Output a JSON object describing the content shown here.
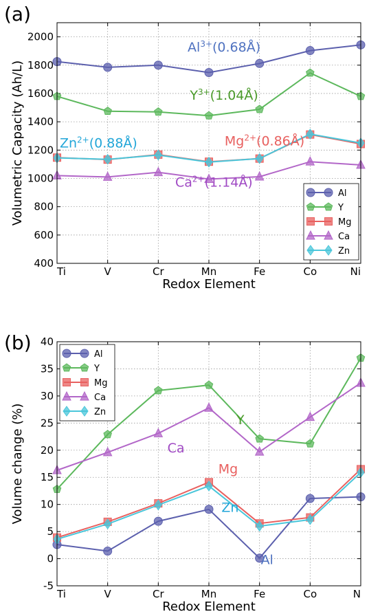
{
  "chart_data": [
    {
      "panel_label": "(a)",
      "type": "line",
      "xlabel": "Redox Element",
      "ylabel": "Volumetric Capacity (Ah/L)",
      "categories": [
        "Ti",
        "V",
        "Cr",
        "Mn",
        "Fe",
        "Co",
        "Ni"
      ],
      "ylim": [
        400,
        2100
      ],
      "yticks": [
        400,
        600,
        800,
        1000,
        1200,
        1400,
        1600,
        1800,
        2000
      ],
      "grid": true,
      "legend_position": "lower-right",
      "series": [
        {
          "name": "Al",
          "color": "#5b5fad",
          "marker": "circle",
          "values": [
            1825,
            1785,
            1800,
            1748,
            1812,
            1903,
            1943
          ]
        },
        {
          "name": "Y",
          "color": "#5cb85c",
          "marker": "pentagon",
          "values": [
            1580,
            1475,
            1470,
            1443,
            1488,
            1745,
            1580
          ]
        },
        {
          "name": "Mg",
          "color": "#e8605f",
          "marker": "square",
          "values": [
            1147,
            1133,
            1168,
            1118,
            1140,
            1310,
            1243
          ]
        },
        {
          "name": "Ca",
          "color": "#b266c8",
          "marker": "triangle",
          "values": [
            1020,
            1010,
            1043,
            995,
            1012,
            1118,
            1095
          ]
        },
        {
          "name": "Zn",
          "color": "#4ac6da",
          "marker": "diamond",
          "values": [
            1145,
            1135,
            1165,
            1115,
            1140,
            1313,
            1250
          ]
        }
      ],
      "annotations": [
        {
          "base": "Al",
          "sup": "3+",
          "rest": "(0.68Å)",
          "color": "#4f72c0",
          "x": 3.3,
          "y": 1895
        },
        {
          "base": "Y",
          "sup": "3+",
          "rest": "(1.04Å)",
          "color": "#4a9a2a",
          "x": 3.3,
          "y": 1555
        },
        {
          "base": "Zn",
          "sup": "2+",
          "rest": "(0.88Å)",
          "color": "#22a6d8",
          "x": 0.82,
          "y": 1218
        },
        {
          "base": "Mg",
          "sup": "2+",
          "rest": "(0.86Å)",
          "color": "#e8605f",
          "x": 4.1,
          "y": 1232
        },
        {
          "base": "Ca",
          "sup": "2+",
          "rest": "(1.14Å)",
          "color": "#a04ac4",
          "x": 3.1,
          "y": 942
        }
      ]
    },
    {
      "panel_label": "(b)",
      "type": "line",
      "xlabel": "Redox Element",
      "ylabel": "Volume change (%)",
      "categories": [
        "Ti",
        "V",
        "Cr",
        "Mn",
        "Fe",
        "Co",
        "N"
      ],
      "ylim": [
        -5,
        40
      ],
      "yticks": [
        -5,
        0,
        5,
        10,
        15,
        20,
        25,
        30,
        35,
        40
      ],
      "grid": true,
      "legend_position": "top-left",
      "series": [
        {
          "name": "Al",
          "color": "#5b5fad",
          "marker": "circle",
          "values": [
            2.6,
            1.4,
            6.9,
            9.1,
            0.1,
            11.1,
            11.4
          ]
        },
        {
          "name": "Y",
          "color": "#5cb85c",
          "marker": "pentagon",
          "values": [
            12.8,
            22.9,
            31.0,
            32.0,
            22.1,
            21.2,
            37.0
          ]
        },
        {
          "name": "Mg",
          "color": "#e8605f",
          "marker": "square",
          "values": [
            3.9,
            6.8,
            10.2,
            14.1,
            6.5,
            7.6,
            16.5
          ]
        },
        {
          "name": "Ca",
          "color": "#b266c8",
          "marker": "triangle",
          "values": [
            16.3,
            19.6,
            23.1,
            27.8,
            19.7,
            26.1,
            32.4
          ]
        },
        {
          "name": "Zn",
          "color": "#4ac6da",
          "marker": "diamond",
          "values": [
            3.6,
            6.4,
            9.9,
            13.4,
            6.0,
            7.2,
            15.9
          ]
        }
      ],
      "annotations": [
        {
          "text": "Y",
          "color": "#4a9a2a",
          "x": 3.62,
          "y": 24.8
        },
        {
          "text": "Ca",
          "color": "#a04ac4",
          "x": 2.35,
          "y": 19.6
        },
        {
          "text": "Mg",
          "color": "#e8605f",
          "x": 3.38,
          "y": 15.7
        },
        {
          "text": "Zn",
          "color": "#22a6d8",
          "x": 3.42,
          "y": 8.6
        },
        {
          "text": "Al",
          "color": "#4f72c0",
          "x": 4.15,
          "y": -1.0
        }
      ]
    }
  ]
}
